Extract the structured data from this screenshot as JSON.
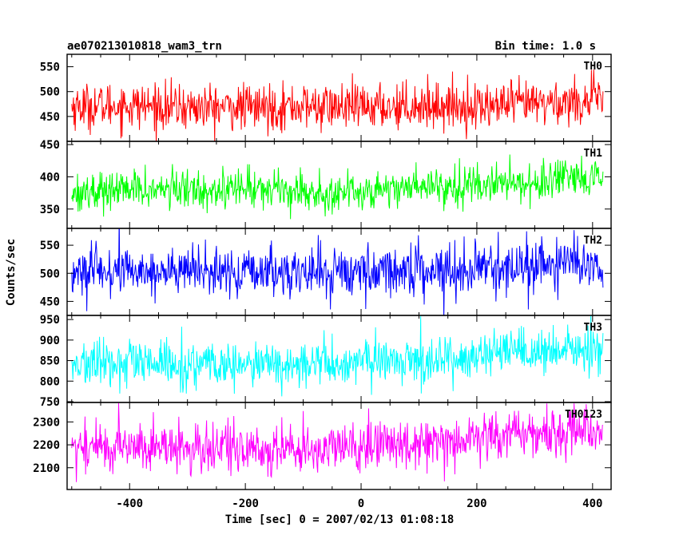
{
  "chart_data": {
    "type": "line",
    "title_left": "ae070213010818_wam3_trn",
    "title_right": "Bin time: 1.0 s",
    "xlabel": "Time [sec] 0 = 2007/02/13 01:08:18",
    "ylabel": "Counts/sec",
    "xlim": [
      -508,
      432
    ],
    "x_ticks": [
      -400,
      -200,
      0,
      200,
      400
    ],
    "x_range": [
      -500,
      418
    ],
    "bin_time_s": 1.0,
    "grid": false,
    "panels": [
      {
        "name": "TH0",
        "color": "#ff0000",
        "ylim": [
          400,
          575
        ],
        "y_ticks": [
          450,
          500,
          550
        ],
        "knots": [
          [
            -500,
            470
          ],
          [
            -400,
            472
          ],
          [
            -300,
            468
          ],
          [
            -200,
            468
          ],
          [
            -100,
            470
          ],
          [
            0,
            468
          ],
          [
            100,
            473
          ],
          [
            200,
            470
          ],
          [
            300,
            476
          ],
          [
            418,
            483
          ]
        ],
        "noise_sd": 23
      },
      {
        "name": "TH1",
        "color": "#00ff00",
        "ylim": [
          320,
          455
        ],
        "y_ticks": [
          350,
          400,
          450
        ],
        "knots": [
          [
            -500,
            376
          ],
          [
            -400,
            380
          ],
          [
            -300,
            380
          ],
          [
            -200,
            383
          ],
          [
            -100,
            380
          ],
          [
            -80,
            372
          ],
          [
            0,
            378
          ],
          [
            100,
            386
          ],
          [
            200,
            388
          ],
          [
            300,
            392
          ],
          [
            418,
            395
          ]
        ],
        "noise_sd": 15
      },
      {
        "name": "TH2",
        "color": "#0000ff",
        "ylim": [
          425,
          580
        ],
        "y_ticks": [
          450,
          500,
          550
        ],
        "knots": [
          [
            -500,
            500
          ],
          [
            -400,
            505
          ],
          [
            -300,
            503
          ],
          [
            -200,
            500
          ],
          [
            -100,
            502
          ],
          [
            0,
            503
          ],
          [
            100,
            507
          ],
          [
            200,
            508
          ],
          [
            300,
            513
          ],
          [
            418,
            520
          ]
        ],
        "noise_sd": 22
      },
      {
        "name": "TH3",
        "color": "#00ffff",
        "ylim": [
          748,
          960
        ],
        "y_ticks": [
          750,
          800,
          850,
          900,
          950
        ],
        "knots": [
          [
            -500,
            840
          ],
          [
            -400,
            842
          ],
          [
            -300,
            838
          ],
          [
            -200,
            837
          ],
          [
            -100,
            840
          ],
          [
            0,
            845
          ],
          [
            100,
            852
          ],
          [
            200,
            860
          ],
          [
            300,
            868
          ],
          [
            418,
            878
          ]
        ],
        "noise_sd": 28
      },
      {
        "name": "TH0123",
        "color": "#ff00ff",
        "ylim": [
          2005,
          2385
        ],
        "y_ticks": [
          2100,
          2200,
          2300
        ],
        "knots": [
          [
            -500,
            2190
          ],
          [
            -400,
            2195
          ],
          [
            -300,
            2185
          ],
          [
            -200,
            2180
          ],
          [
            -100,
            2178
          ],
          [
            0,
            2190
          ],
          [
            100,
            2215
          ],
          [
            200,
            2235
          ],
          [
            300,
            2250
          ],
          [
            418,
            2275
          ]
        ],
        "noise_sd": 55
      }
    ]
  }
}
